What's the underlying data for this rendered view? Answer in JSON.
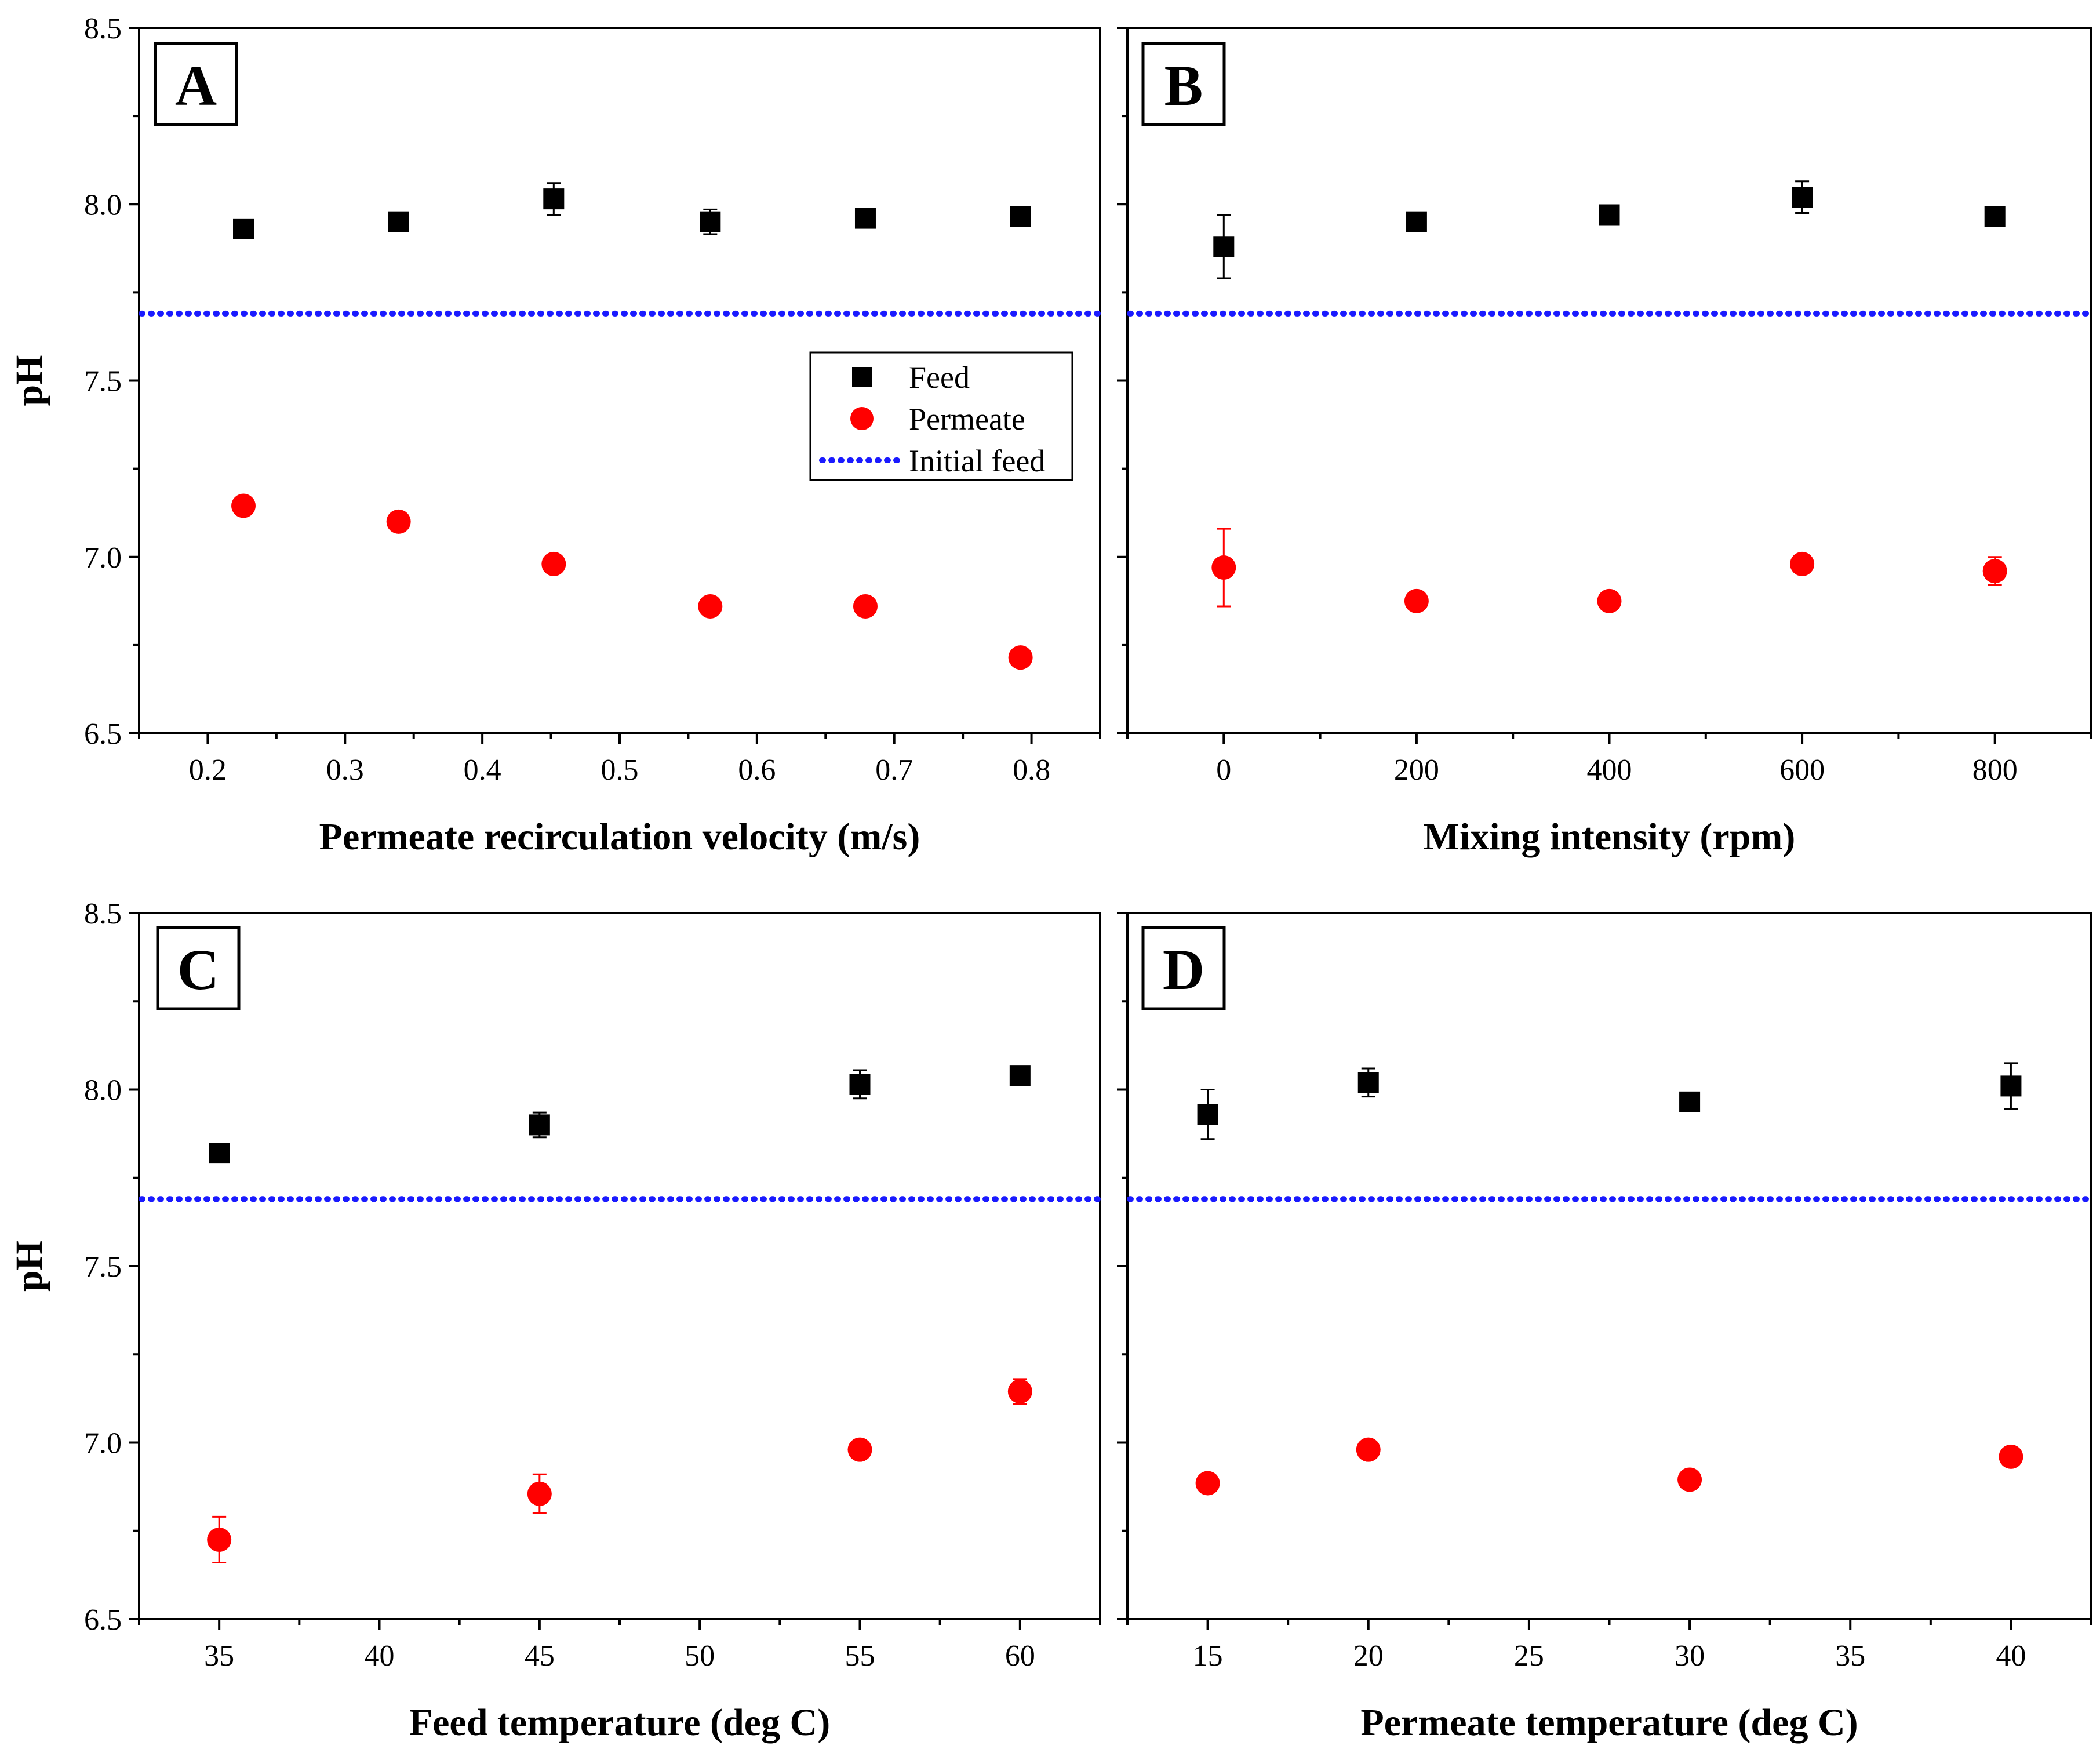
{
  "chart_data": [
    {
      "type": "scatter",
      "panel_label": "A",
      "xlabel": "Permeate recirculation velocity (m/s)",
      "ylabel": "pH",
      "xlim": [
        0.15,
        0.85
      ],
      "ylim": [
        6.5,
        8.5
      ],
      "xticks": [
        "0.2",
        "0.3",
        "0.4",
        "0.5",
        "0.6",
        "0.7",
        "0.8"
      ],
      "yticks": [
        "6.5",
        "7.0",
        "7.5",
        "8.0",
        "8.5"
      ],
      "initial_feed": 7.69,
      "series": [
        {
          "name": "Feed",
          "marker": "square",
          "color": "#000000",
          "x": [
            0.226,
            0.339,
            0.452,
            0.566,
            0.679,
            0.792
          ],
          "y": [
            7.93,
            7.95,
            8.015,
            7.95,
            7.96,
            7.965
          ],
          "err": [
            0.0,
            0.0,
            0.045,
            0.035,
            0.0,
            0.0
          ]
        },
        {
          "name": "Permeate",
          "marker": "circle",
          "color": "#ff0000",
          "x": [
            0.226,
            0.339,
            0.452,
            0.566,
            0.679,
            0.792
          ],
          "y": [
            7.145,
            7.1,
            6.98,
            6.86,
            6.86,
            6.715
          ],
          "err": [
            0.0,
            0.0,
            0.0,
            0.0,
            0.0,
            0.0
          ]
        }
      ],
      "legend": {
        "position": "middle-right",
        "entries": [
          "Feed",
          "Permeate",
          "Initial feed"
        ]
      }
    },
    {
      "type": "scatter",
      "panel_label": "B",
      "xlabel": "Mixing intensity (rpm)",
      "ylabel": "",
      "xlim": [
        -100,
        900
      ],
      "ylim": [
        6.5,
        8.5
      ],
      "xticks": [
        "0",
        "200",
        "400",
        "600",
        "800"
      ],
      "yticks": [],
      "initial_feed": 7.69,
      "series": [
        {
          "name": "Feed",
          "marker": "square",
          "color": "#000000",
          "x": [
            0,
            200,
            400,
            600,
            800
          ],
          "y": [
            7.88,
            7.95,
            7.97,
            8.02,
            7.965
          ],
          "err": [
            0.09,
            0.0,
            0.0,
            0.045,
            0.0
          ]
        },
        {
          "name": "Permeate",
          "marker": "circle",
          "color": "#ff0000",
          "x": [
            0,
            200,
            400,
            600,
            800
          ],
          "y": [
            6.97,
            6.875,
            6.875,
            6.98,
            6.96
          ],
          "err": [
            0.11,
            0.0,
            0.0,
            0.0,
            0.04
          ]
        }
      ]
    },
    {
      "type": "scatter",
      "panel_label": "C",
      "xlabel": "Feed temperature (deg C)",
      "ylabel": "pH",
      "xlim": [
        32.5,
        62.5
      ],
      "ylim": [
        6.5,
        8.5
      ],
      "xticks": [
        "35",
        "40",
        "45",
        "50",
        "55",
        "60"
      ],
      "yticks": [
        "6.5",
        "7.0",
        "7.5",
        "8.0",
        "8.5"
      ],
      "initial_feed": 7.69,
      "series": [
        {
          "name": "Feed",
          "marker": "square",
          "color": "#000000",
          "x": [
            35,
            45,
            55,
            60
          ],
          "y": [
            7.82,
            7.9,
            8.015,
            8.04
          ],
          "err": [
            0.0,
            0.035,
            0.04,
            0.0
          ]
        },
        {
          "name": "Permeate",
          "marker": "circle",
          "color": "#ff0000",
          "x": [
            35,
            45,
            55,
            60
          ],
          "y": [
            6.725,
            6.855,
            6.98,
            7.145
          ],
          "err": [
            0.065,
            0.055,
            0.0,
            0.035
          ]
        }
      ]
    },
    {
      "type": "scatter",
      "panel_label": "D",
      "xlabel": "Permeate temperature (deg C)",
      "ylabel": "",
      "xlim": [
        12.5,
        42.5
      ],
      "ylim": [
        6.5,
        8.5
      ],
      "xticks": [
        "15",
        "20",
        "25",
        "30",
        "35",
        "40"
      ],
      "yticks": [],
      "initial_feed": 7.69,
      "series": [
        {
          "name": "Feed",
          "marker": "square",
          "color": "#000000",
          "x": [
            15,
            20,
            30,
            40
          ],
          "y": [
            7.93,
            8.02,
            7.965,
            8.01
          ],
          "err": [
            0.07,
            0.04,
            0.0,
            0.065
          ]
        },
        {
          "name": "Permeate",
          "marker": "circle",
          "color": "#ff0000",
          "x": [
            15,
            20,
            30,
            40
          ],
          "y": [
            6.885,
            6.98,
            6.895,
            6.96
          ],
          "err": [
            0.0,
            0.0,
            0.0,
            0.0
          ]
        }
      ]
    }
  ],
  "colors": {
    "feed": "#000000",
    "permeate": "#ff0000",
    "initial_feed": "#1a1aff"
  }
}
